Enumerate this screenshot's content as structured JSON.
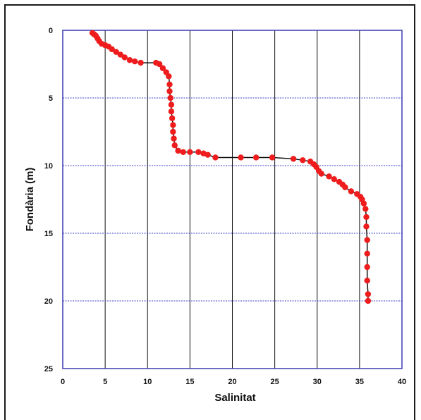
{
  "chart_data": {
    "type": "scatter",
    "xlabel": "Salinitat",
    "ylabel": "Fondària (m)",
    "xlim": [
      0,
      40
    ],
    "ylim": [
      0,
      25
    ],
    "y_inverted": true,
    "xticks": [
      "0",
      "5",
      "10",
      "15",
      "20",
      "25",
      "30",
      "35",
      "40"
    ],
    "yticks": [
      "0",
      "5",
      "10",
      "15",
      "20",
      "25"
    ],
    "grid": true,
    "colors": {
      "points": "#ee1c1c",
      "line": "#111111",
      "grid": "#3f3fc8",
      "axes": "#3c3cb4"
    },
    "series": [
      {
        "points": [
          [
            3.5,
            0.2
          ],
          [
            3.7,
            0.3
          ],
          [
            3.9,
            0.4
          ],
          [
            4.1,
            0.6
          ],
          [
            4.3,
            0.8
          ],
          [
            4.6,
            1.0
          ],
          [
            5.0,
            1.1
          ],
          [
            5.4,
            1.2
          ],
          [
            5.8,
            1.4
          ],
          [
            6.3,
            1.6
          ],
          [
            6.8,
            1.8
          ],
          [
            7.3,
            2.0
          ],
          [
            7.9,
            2.2
          ],
          [
            8.5,
            2.3
          ],
          [
            9.2,
            2.4
          ],
          [
            11.0,
            2.4
          ],
          [
            11.4,
            2.5
          ],
          [
            11.8,
            2.8
          ],
          [
            12.2,
            3.1
          ],
          [
            12.5,
            3.4
          ],
          [
            12.6,
            4.0
          ],
          [
            12.6,
            4.5
          ],
          [
            12.7,
            5.0
          ],
          [
            12.8,
            5.5
          ],
          [
            12.8,
            6.0
          ],
          [
            12.9,
            6.5
          ],
          [
            13.0,
            7.0
          ],
          [
            13.0,
            7.5
          ],
          [
            13.1,
            8.0
          ],
          [
            13.2,
            8.5
          ],
          [
            13.6,
            8.9
          ],
          [
            14.2,
            9.0
          ],
          [
            15.0,
            9.0
          ],
          [
            16.0,
            9.0
          ],
          [
            16.6,
            9.1
          ],
          [
            17.1,
            9.2
          ],
          [
            18.0,
            9.4
          ],
          [
            21.0,
            9.4
          ],
          [
            22.8,
            9.4
          ],
          [
            24.7,
            9.4
          ],
          [
            27.2,
            9.5
          ],
          [
            28.3,
            9.6
          ],
          [
            29.2,
            9.7
          ],
          [
            29.6,
            9.9
          ],
          [
            29.9,
            10.1
          ],
          [
            30.2,
            10.4
          ],
          [
            30.5,
            10.6
          ],
          [
            31.4,
            10.8
          ],
          [
            32.0,
            11.0
          ],
          [
            32.6,
            11.2
          ],
          [
            33.0,
            11.4
          ],
          [
            33.3,
            11.6
          ],
          [
            34.0,
            11.9
          ],
          [
            34.7,
            12.1
          ],
          [
            35.1,
            12.3
          ],
          [
            35.3,
            12.5
          ],
          [
            35.5,
            12.8
          ],
          [
            35.7,
            13.2
          ],
          [
            35.8,
            13.8
          ],
          [
            35.8,
            14.5
          ],
          [
            35.9,
            15.5
          ],
          [
            35.9,
            16.5
          ],
          [
            35.9,
            17.5
          ],
          [
            35.9,
            18.5
          ],
          [
            36.0,
            19.5
          ],
          [
            36.0,
            20.0
          ]
        ]
      }
    ]
  }
}
